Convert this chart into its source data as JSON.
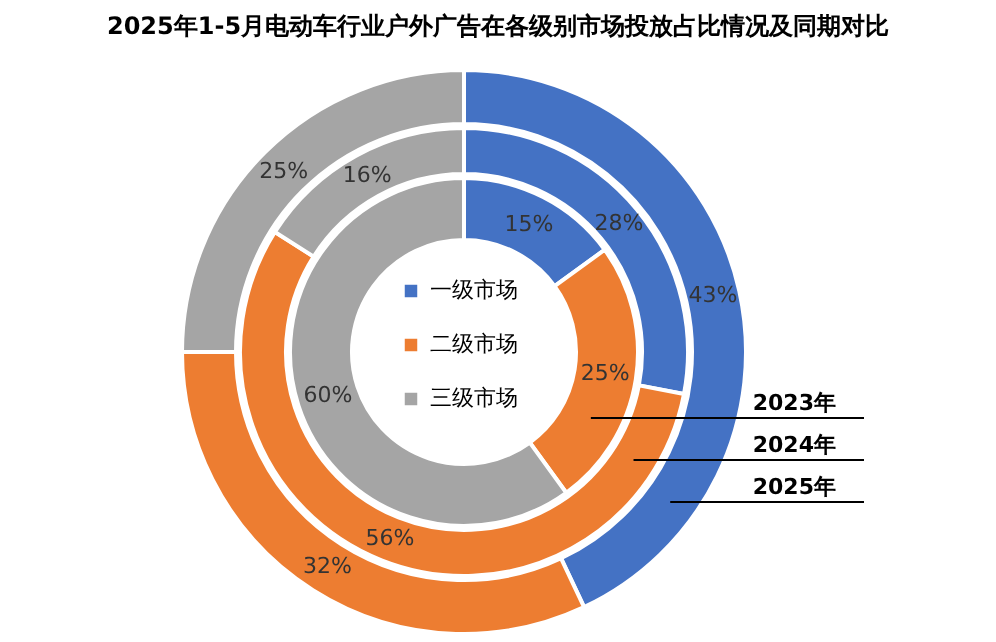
{
  "chart_data": {
    "type": "donut",
    "title": "2025年1-5月电动车行业户外广告在各级别市场投放占比情况及同期对比",
    "categories": [
      "一级市场",
      "二级市场",
      "三级市场"
    ],
    "colors": [
      "#4472c4",
      "#ed7d31",
      "#a5a5a5"
    ],
    "series": [
      {
        "name": "2023年",
        "values": [
          15,
          25,
          60
        ],
        "value_labels": [
          "15%",
          "25%",
          "60%"
        ]
      },
      {
        "name": "2024年",
        "values": [
          28,
          56,
          16
        ],
        "value_labels": [
          "28%",
          "56%",
          "16%"
        ]
      },
      {
        "name": "2025年",
        "values": [
          43,
          32,
          25
        ],
        "value_labels": [
          "43%",
          "32%",
          "25%"
        ]
      }
    ],
    "legend": "center"
  }
}
